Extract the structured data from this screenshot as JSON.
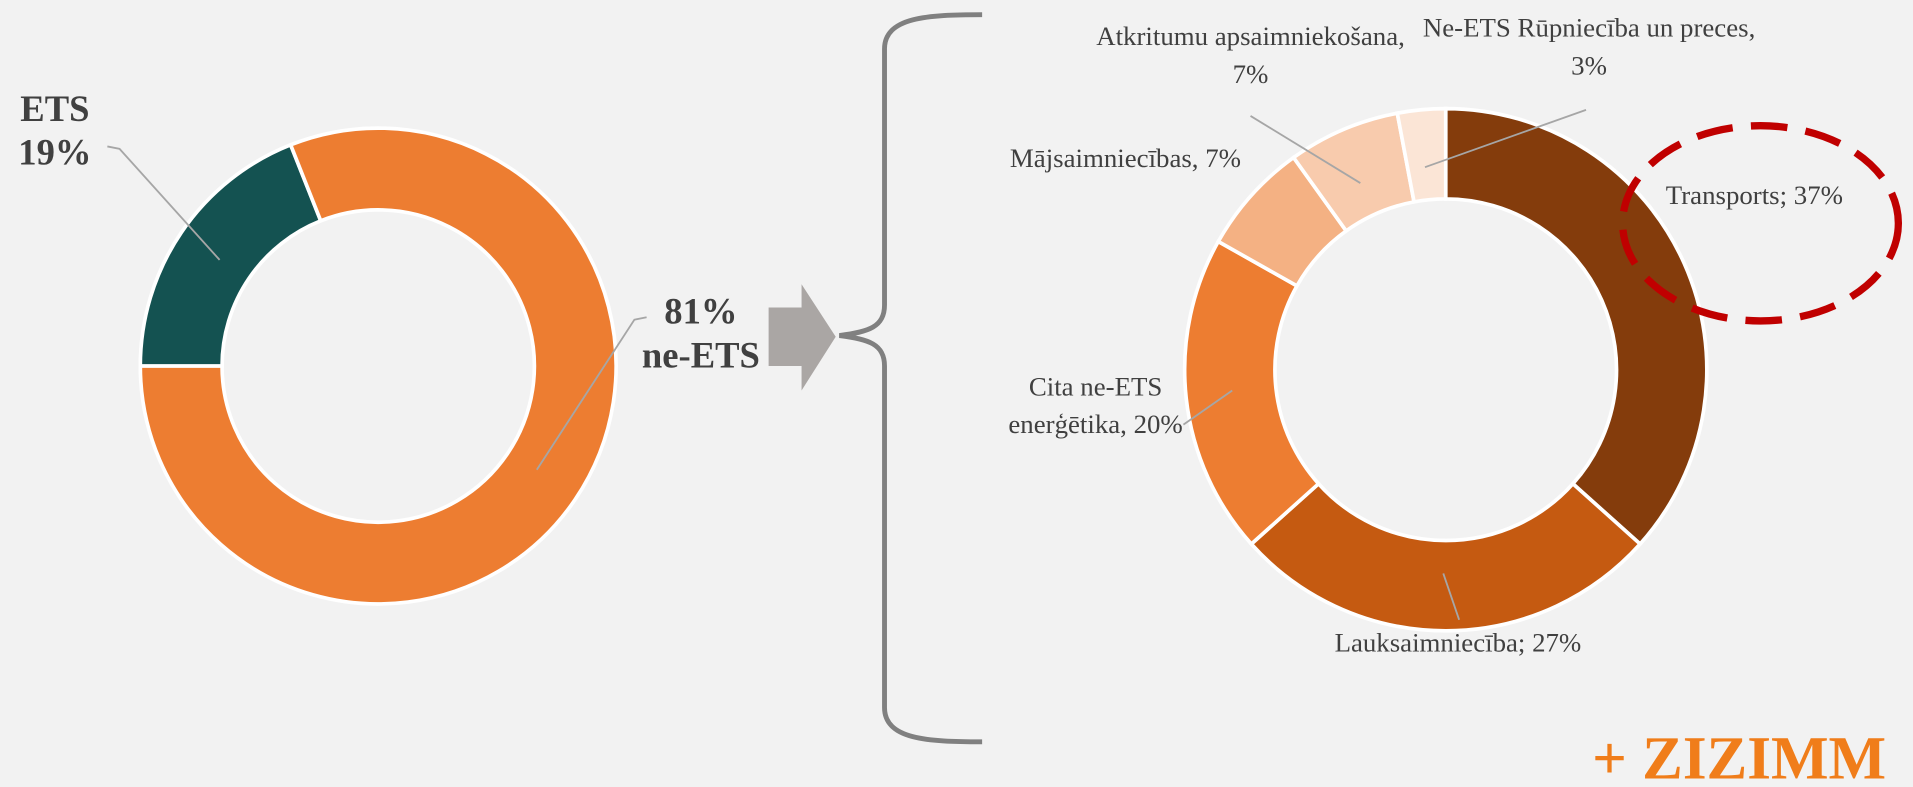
{
  "chart_data": [
    {
      "type": "donut",
      "categories": [
        "ETS",
        "ne-ETS"
      ],
      "values": [
        19,
        81
      ],
      "value_labels": [
        "19%",
        "81%"
      ],
      "colors": [
        "#145251",
        "#ed7d31"
      ]
    },
    {
      "type": "donut",
      "categories": [
        "Transports;",
        "Lauksaimniecība;",
        "Cita ne-ETS enerģētika,",
        "Mājsaimniecības,",
        "Atkritumu apsaimniekošana,",
        "Ne-ETS Rūpniecība un preces,"
      ],
      "values": [
        37,
        27,
        20,
        7,
        7,
        3
      ],
      "value_labels": [
        "37%",
        "27%",
        "20%",
        "7%",
        "7%",
        "3%"
      ],
      "colors": [
        "#843c0c",
        "#c55a11",
        "#ed7d31",
        "#f4b183",
        "#f8cbad",
        "#fbe5d6"
      ]
    }
  ],
  "watermark": "+ ZIZIMM"
}
